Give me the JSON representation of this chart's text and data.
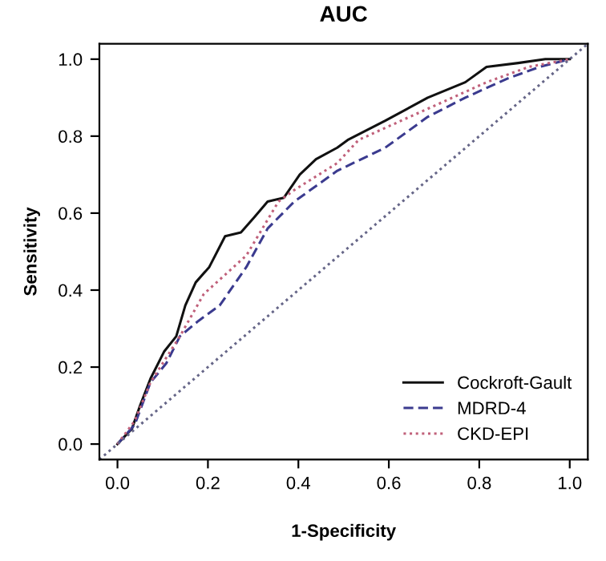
{
  "chart_data": {
    "type": "line",
    "title": "AUC",
    "xlabel": "1-Specificity",
    "ylabel": "Sensitivity",
    "xlim": [
      -0.04,
      1.04
    ],
    "ylim": [
      -0.04,
      1.04
    ],
    "xticks": [
      {
        "value": 0,
        "label": "0.0"
      },
      0.2,
      0.4,
      0.6,
      0.8,
      {
        "value": 1,
        "label": "1.0"
      }
    ],
    "yticks": [
      {
        "value": 0,
        "label": "0.0"
      },
      0.2,
      0.4,
      0.6,
      0.8,
      {
        "value": 1,
        "label": "1.0"
      }
    ],
    "grid": false,
    "legend": "bottom right",
    "marker": "none",
    "series": [
      {
        "name": "Cockroft-Gault",
        "color": "#111111",
        "line_style": "solid",
        "x": [
          0,
          0.032,
          0.05,
          0.073,
          0.103,
          0.13,
          0.15,
          0.173,
          0.203,
          0.238,
          0.273,
          0.303,
          0.332,
          0.368,
          0.403,
          0.439,
          0.486,
          0.509,
          0.592,
          0.686,
          0.769,
          0.816,
          0.886,
          0.946,
          1
        ],
        "values": [
          0,
          0.04,
          0.1,
          0.17,
          0.24,
          0.28,
          0.36,
          0.42,
          0.46,
          0.54,
          0.55,
          0.59,
          0.63,
          0.64,
          0.7,
          0.74,
          0.77,
          0.79,
          0.84,
          0.9,
          0.94,
          0.98,
          0.99,
          1,
          1
        ]
      },
      {
        "name": "MDRD-4",
        "color": "#3b3b8f",
        "line_style": "dashed",
        "x": [
          0,
          0.038,
          0.073,
          0.108,
          0.138,
          0.179,
          0.226,
          0.285,
          0.332,
          0.391,
          0.486,
          0.592,
          0.686,
          0.769,
          0.863,
          0.934,
          1
        ],
        "values": [
          0,
          0.05,
          0.16,
          0.21,
          0.28,
          0.32,
          0.36,
          0.46,
          0.56,
          0.63,
          0.71,
          0.77,
          0.85,
          0.9,
          0.95,
          0.98,
          1
        ]
      },
      {
        "name": "CKD-EPI",
        "color": "#c0607a",
        "line_style": "dotted",
        "x": [
          0,
          0.038,
          0.073,
          0.138,
          0.191,
          0.238,
          0.285,
          0.356,
          0.391,
          0.486,
          0.533,
          0.627,
          0.722,
          0.816,
          0.91,
          1
        ],
        "values": [
          0,
          0.06,
          0.16,
          0.28,
          0.39,
          0.44,
          0.49,
          0.63,
          0.66,
          0.73,
          0.79,
          0.84,
          0.89,
          0.94,
          0.98,
          1
        ]
      },
      {
        "color": "#666688",
        "line_style": "dotted",
        "x": [
          -0.04,
          1.04
        ],
        "values": [
          -0.04,
          1.04
        ]
      }
    ]
  }
}
